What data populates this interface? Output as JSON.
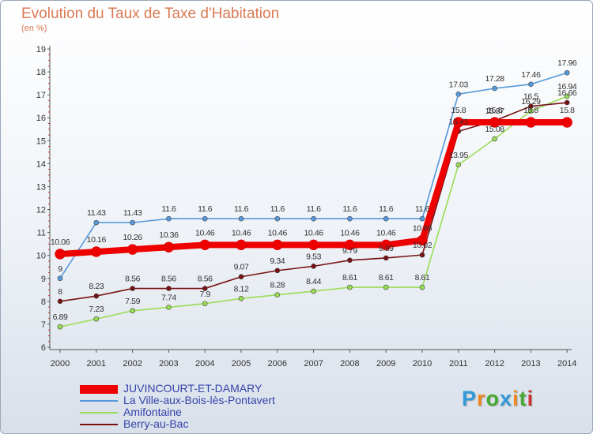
{
  "title": "Evolution du Taux de Taxe d'Habitation",
  "unit": "(en %)",
  "logo": "Proxiti",
  "chart_data": {
    "type": "line",
    "x": [
      "2000",
      "2001",
      "2002",
      "2003",
      "2004",
      "2005",
      "2006",
      "2007",
      "2008",
      "2009",
      "2010",
      "2011",
      "2012",
      "2013",
      "2014"
    ],
    "yticks": [
      "6",
      "7",
      "8",
      "9",
      "10",
      "11",
      "12",
      "13",
      "14",
      "15",
      "16",
      "17",
      "18",
      "19"
    ],
    "ylim": [
      6,
      19
    ],
    "grid": false,
    "legend_position": "bottom-left",
    "series": [
      {
        "name": "JUVINCOURT-ET-DAMARY",
        "color": "#ee0000",
        "values": [
          10.06,
          10.16,
          10.26,
          10.36,
          10.46,
          10.46,
          10.46,
          10.46,
          10.46,
          10.46,
          10.66,
          15.8,
          15.8,
          15.8,
          15.8
        ],
        "labels": [
          "10.06",
          "10.16",
          "10.26",
          "10.36",
          "10.46",
          "10.46",
          "10.46",
          "10.46",
          "10.46",
          "10.46",
          "10.66",
          "15.8",
          "15.8",
          "15.8",
          "15.8"
        ]
      },
      {
        "name": "La Ville-aux-Bois-lès-Pontavert",
        "color": "#5599dd",
        "values": [
          9,
          11.43,
          11.43,
          11.6,
          11.6,
          11.6,
          11.6,
          11.6,
          11.6,
          11.6,
          11.6,
          17.03,
          17.28,
          17.46,
          17.96
        ],
        "labels": [
          "9",
          "11.43",
          "11.43",
          "11.6",
          "11.6",
          "11.6",
          "11.6",
          "11.6",
          "11.6",
          "11.6",
          "11.6",
          "17.03",
          "17.28",
          "17.46",
          "17.96"
        ]
      },
      {
        "name": "Amifontaine",
        "color": "#99dd55",
        "values": [
          6.89,
          7.23,
          7.59,
          7.74,
          7.9,
          8.12,
          8.28,
          8.44,
          8.61,
          8.61,
          8.61,
          13.95,
          15.08,
          16.29,
          16.94
        ],
        "labels": [
          "6.89",
          "7.23",
          "7.59",
          "7.74",
          "7.9",
          "8.12",
          "8.28",
          "8.44",
          "8.61",
          "8.61",
          "8.61",
          "13.95",
          "15.08",
          "16.29",
          "16.94"
        ]
      },
      {
        "name": "Berry-au-Bac",
        "color": "#771111",
        "values": [
          8,
          8.23,
          8.56,
          8.56,
          8.56,
          9.07,
          9.34,
          9.53,
          9.79,
          9.89,
          10.02,
          15.41,
          15.87,
          16.5,
          16.66
        ],
        "labels": [
          "8",
          "8.23",
          "8.56",
          "8.56",
          "8.56",
          "9.07",
          "9.34",
          "9.53",
          "9.79",
          "9.89",
          "10.02",
          "15.41",
          "15.87",
          "16.5",
          "16.66"
        ]
      }
    ]
  }
}
